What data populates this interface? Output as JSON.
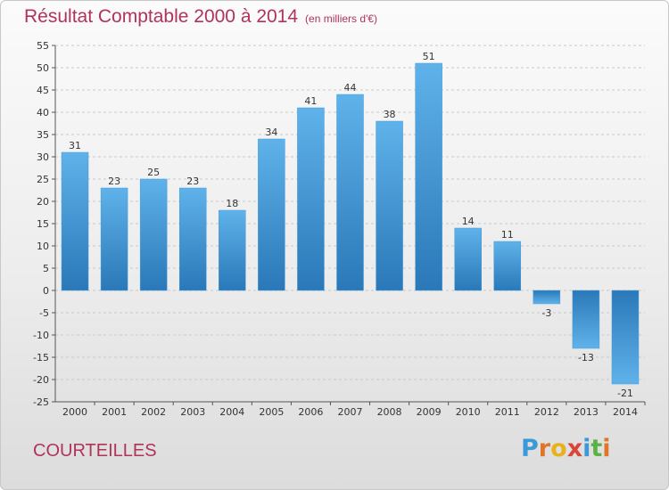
{
  "header": {
    "title": "Résultat Comptable 2000 à 2014",
    "subtitle": "(en milliers d'€)"
  },
  "footer": {
    "commune": "COURTEILLES",
    "logo_letters": [
      "P",
      "r",
      "o",
      "x",
      "i",
      "t",
      "i"
    ],
    "logo_colors": [
      "#3a9ad9",
      "#e0742a",
      "#e8b21c",
      "#d94637",
      "#3a9ad9",
      "#5bb344",
      "#e0742a"
    ]
  },
  "colors": {
    "title": "#b0335a",
    "bar_light": "#5fb2ea",
    "bar_dark": "#2a78b8",
    "grid": "#c9c9c9"
  },
  "chart_data": {
    "type": "bar",
    "title": "Résultat Comptable 2000 à 2014",
    "categories": [
      "2000",
      "2001",
      "2002",
      "2003",
      "2004",
      "2005",
      "2006",
      "2007",
      "2008",
      "2009",
      "2010",
      "2011",
      "2012",
      "2013",
      "2014"
    ],
    "values": [
      31,
      23,
      25,
      23,
      18,
      34,
      41,
      44,
      38,
      51,
      14,
      11,
      -3,
      -13,
      -21
    ],
    "ylim": [
      -25,
      55
    ],
    "yticks": [
      55,
      50,
      45,
      40,
      35,
      30,
      25,
      20,
      15,
      10,
      5,
      0,
      -5,
      -10,
      -15,
      -20,
      -25
    ],
    "grid": true,
    "xlabel": "",
    "ylabel": ""
  }
}
